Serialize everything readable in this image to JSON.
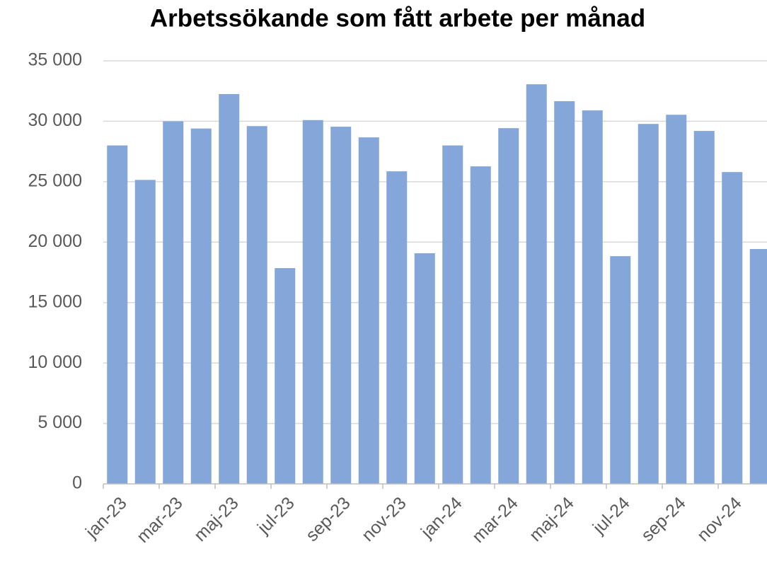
{
  "chart_data": {
    "type": "bar",
    "title": "Arbetssökande som fått arbete per månad",
    "categories": [
      "jan-23",
      null,
      "mar-23",
      null,
      "maj-23",
      null,
      "jul-23",
      null,
      "sep-23",
      null,
      "nov-23",
      null,
      "jan-24",
      null,
      "mar-24",
      null,
      "maj-24",
      null,
      "jul-24",
      null,
      "sep-24",
      null,
      "nov-24",
      null
    ],
    "values": [
      28000,
      25150,
      30000,
      29400,
      32250,
      29600,
      17850,
      30100,
      29550,
      28670,
      25860,
      19080,
      28000,
      26270,
      29430,
      33060,
      31660,
      30900,
      18840,
      29780,
      30540,
      29200,
      25800,
      19430
    ],
    "color": "#84a6d8",
    "ylim": [
      0,
      35000
    ],
    "yticks": [
      0,
      {
        "value": 5000,
        "label": "5 000"
      },
      {
        "value": 10000,
        "label": "10 000"
      },
      {
        "value": 15000,
        "label": "15 000"
      },
      {
        "value": 20000,
        "label": "20 000"
      },
      {
        "value": 25000,
        "label": "25 000"
      },
      {
        "value": 30000,
        "label": "30 000"
      },
      {
        "value": 35000,
        "label": "35 000"
      }
    ],
    "grid": true
  }
}
